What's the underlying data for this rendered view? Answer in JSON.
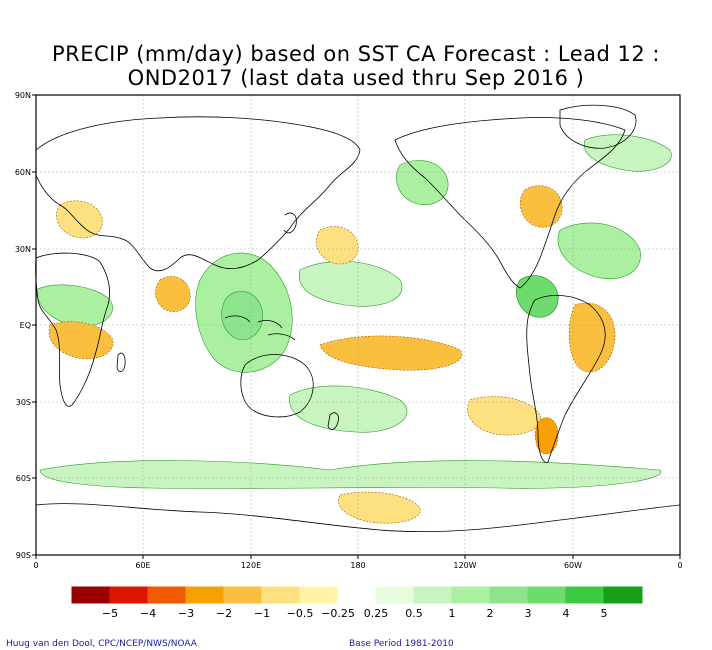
{
  "title_line1": "PRECIP (mm/day) based on SST CA Forecast : Lead 12 :",
  "title_line2": "OND2017 (last data used thru Sep 2016 )",
  "lat_labels": [
    "90N",
    "60N",
    "30N",
    "EQ",
    "30S",
    "60S",
    "90S"
  ],
  "lon_labels": [
    "0",
    "60E",
    "120E",
    "180",
    "120W",
    "60W",
    "0"
  ],
  "legend": {
    "colors": [
      "#9b0000",
      "#dd1400",
      "#f25a00",
      "#f7a000",
      "#fbbf40",
      "#fde080",
      "#fff4a8",
      "#ffffff",
      "#e8fce0",
      "#c8f4c0",
      "#aaf0a0",
      "#8ee48c",
      "#6edc6c",
      "#3cc840",
      "#16a018"
    ],
    "labels": [
      "−5",
      "−4",
      "−3",
      "−2",
      "−1",
      "−0.5",
      "−0.25",
      "0.25",
      "0.5",
      "1",
      "2",
      "3",
      "4",
      "5"
    ]
  },
  "credit_left": "Huug van den Dool, CPC/NCEP/NWS/NOAA",
  "credit_right": "Base Period 1981-2010",
  "colors": {
    "dry": "#fbbf40",
    "dry_light": "#fde080",
    "wet": "#aaf0a0",
    "wet_light": "#c8f4c0",
    "wet_dark": "#6edc6c"
  }
}
